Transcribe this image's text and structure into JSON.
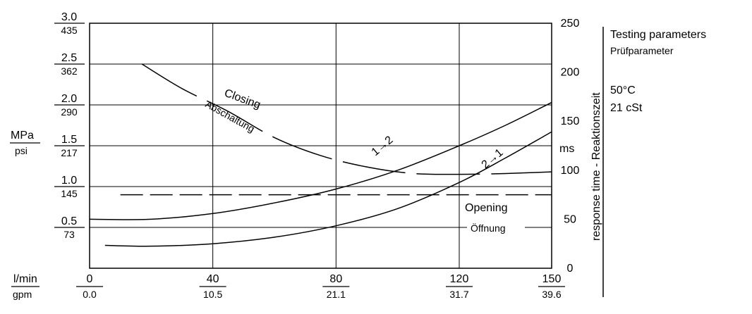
{
  "chart_data": {
    "type": "line",
    "x_axis": {
      "unit_primary": "l/min",
      "unit_secondary": "gpm",
      "ticks": [
        {
          "primary": "0",
          "secondary": "0.0",
          "value": 0
        },
        {
          "primary": "40",
          "secondary": "10.5",
          "value": 40
        },
        {
          "primary": "80",
          "secondary": "21.1",
          "value": 80
        },
        {
          "primary": "120",
          "secondary": "31.7",
          "value": 120
        },
        {
          "primary": "150",
          "secondary": "39.6",
          "value": 150
        }
      ],
      "range": [
        0,
        150
      ]
    },
    "y_left": {
      "unit_primary": "MPa",
      "unit_secondary": "psi",
      "ticks": [
        {
          "primary": "3.0",
          "secondary": "435",
          "value": 3.0
        },
        {
          "primary": "2.5",
          "secondary": "362",
          "value": 2.5
        },
        {
          "primary": "2.0",
          "secondary": "290",
          "value": 2.0
        },
        {
          "primary": "1.5",
          "secondary": "217",
          "value": 1.5
        },
        {
          "primary": "1.0",
          "secondary": "145",
          "value": 1.0
        },
        {
          "primary": "0.5",
          "secondary": "73",
          "value": 0.5
        }
      ],
      "range": [
        0,
        3.0
      ]
    },
    "y_right": {
      "label": "response time - Reaktionszeit",
      "unit": "ms",
      "ticks": [
        "250",
        "200",
        "150",
        "100",
        "50",
        "0"
      ],
      "range": [
        0,
        250
      ]
    },
    "grid": true,
    "series": [
      {
        "name": "1→2",
        "axis": "left",
        "style": "solid",
        "points": [
          [
            0,
            0.6
          ],
          [
            20,
            0.6
          ],
          [
            40,
            0.67
          ],
          [
            60,
            0.8
          ],
          [
            80,
            0.97
          ],
          [
            100,
            1.2
          ],
          [
            120,
            1.5
          ],
          [
            135,
            1.75
          ],
          [
            150,
            2.03
          ]
        ]
      },
      {
        "name": "2→1",
        "axis": "left",
        "style": "solid",
        "points": [
          [
            5,
            0.28
          ],
          [
            20,
            0.27
          ],
          [
            40,
            0.3
          ],
          [
            60,
            0.38
          ],
          [
            80,
            0.52
          ],
          [
            100,
            0.73
          ],
          [
            120,
            1.05
          ],
          [
            135,
            1.35
          ],
          [
            150,
            1.67
          ]
        ]
      },
      {
        "name": "Closing",
        "axis": "left",
        "style": "dashed",
        "points": [
          [
            17,
            2.5
          ],
          [
            30,
            2.2
          ],
          [
            45,
            1.92
          ],
          [
            60,
            1.6
          ],
          [
            75,
            1.38
          ],
          [
            90,
            1.24
          ],
          [
            105,
            1.16
          ],
          [
            120,
            1.15
          ],
          [
            135,
            1.16
          ],
          [
            150,
            1.18
          ]
        ]
      },
      {
        "name": "Opening",
        "axis": "left",
        "style": "dashed",
        "points": [
          [
            10,
            0.9
          ],
          [
            150,
            0.9
          ]
        ]
      }
    ],
    "annotations": {
      "closing_en": "Closing",
      "closing_de": "Abschaltung",
      "opening_en": "Opening",
      "opening_de": "Öffnung",
      "one_to_two": "1→2",
      "two_to_one": "2→1"
    }
  },
  "side_panel": {
    "title_en": "Testing parameters",
    "title_de": "Prüfparameter",
    "temp": "50°C",
    "viscosity": "21 cSt"
  }
}
